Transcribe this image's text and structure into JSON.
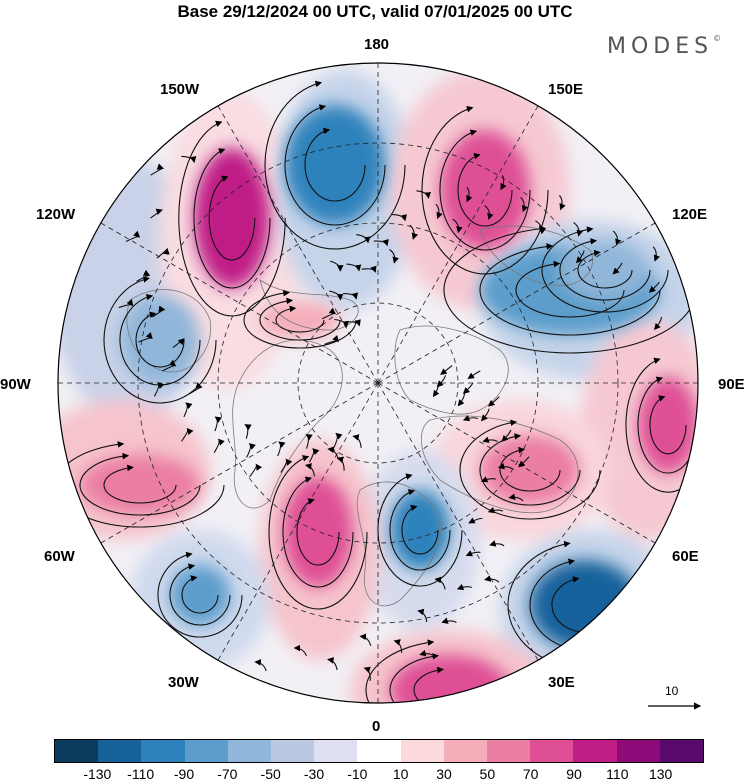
{
  "title": "Base 29/12/2024 00 UTC, valid 07/01/2025 00 UTC",
  "brand": "MODES",
  "brand_mark": "©",
  "longitude_labels": {
    "lon_180": "180",
    "lon_150w": "150W",
    "lon_150e": "150E",
    "lon_120w": "120W",
    "lon_120e": "120E",
    "lon_90w": "90W",
    "lon_90e": "90E",
    "lon_60w": "60W",
    "lon_60e": "60E",
    "lon_30w": "30W",
    "lon_30e": "30E",
    "lon_0": "0"
  },
  "reference_vector_label": "10",
  "colorbar": {
    "ticks": [
      "-130",
      "-110",
      "-90",
      "-70",
      "-50",
      "-30",
      "-10",
      "10",
      "30",
      "50",
      "70",
      "90",
      "110",
      "130"
    ],
    "colors": [
      "#0b3c5d",
      "#17629b",
      "#2e82bb",
      "#5c9dcb",
      "#90b6d9",
      "#bac8e2",
      "#dedff0",
      "#ffffff",
      "#fbd9dd",
      "#f4aeba",
      "#ea7ea3",
      "#de4f95",
      "#bf1d86",
      "#8d0a78",
      "#5a0a6c"
    ]
  },
  "anomaly_centers": [
    {
      "id": "a1",
      "value": 110,
      "color": "#bf1d86"
    },
    {
      "id": "a2",
      "value": -90,
      "color": "#2e82bb"
    },
    {
      "id": "a3",
      "value": 90,
      "color": "#de4f95"
    },
    {
      "id": "a4",
      "value": -70,
      "color": "#5c9dcb"
    },
    {
      "id": "a5",
      "value": 90,
      "color": "#de4f95"
    },
    {
      "id": "a6",
      "value": 50,
      "color": "#ea7ea3"
    },
    {
      "id": "a7",
      "value": -50,
      "color": "#90b6d9"
    },
    {
      "id": "a8",
      "value": 90,
      "color": "#de4f95"
    },
    {
      "id": "a9",
      "value": -90,
      "color": "#2e82bb"
    },
    {
      "id": "a10",
      "value": 90,
      "color": "#de4f95"
    },
    {
      "id": "a11",
      "value": -110,
      "color": "#17629b"
    },
    {
      "id": "a12",
      "value": 50,
      "color": "#ea7ea3"
    },
    {
      "id": "a13",
      "value": -70,
      "color": "#5c9dcb"
    },
    {
      "id": "a14",
      "value": -50,
      "color": "#90b6d9"
    },
    {
      "id": "a15",
      "value": 30,
      "color": "#f4aeba"
    }
  ]
}
